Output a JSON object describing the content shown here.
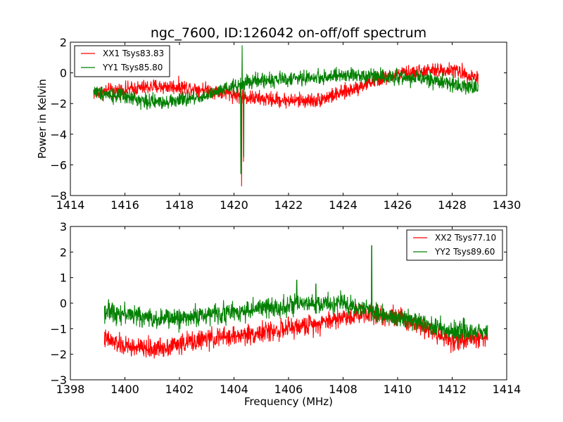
{
  "chart_data": [
    {
      "type": "line",
      "title": "ngc_7600, ID:126042 on-off/off spectrum",
      "xlabel": "",
      "ylabel": "Power in Kelvin",
      "xlim": [
        1414,
        1430
      ],
      "ylim": [
        -8,
        2
      ],
      "xticks": [
        1414,
        1416,
        1418,
        1420,
        1422,
        1424,
        1426,
        1428,
        1430
      ],
      "yticks": [
        -8,
        -6,
        -4,
        -2,
        0,
        2
      ],
      "xtick_labels": [
        "1414",
        "1416",
        "1418",
        "1420",
        "1422",
        "1424",
        "1426",
        "1428",
        "1430"
      ],
      "ytick_labels": [
        "−8",
        "−6",
        "−4",
        "−2",
        "0",
        "2"
      ],
      "grid": false,
      "legend_position": "top-left",
      "series": [
        {
          "name": "XX1 Tsys83.83",
          "color": "#ff0000",
          "x_range": [
            1414.85,
            1428.95
          ],
          "noise": 0.35,
          "baseline": [
            [
              1414.85,
              -1.3
            ],
            [
              1416,
              -1.1
            ],
            [
              1417,
              -0.9
            ],
            [
              1418,
              -0.9
            ],
            [
              1419,
              -1.1
            ],
            [
              1420,
              -1.4
            ],
            [
              1420.5,
              -1.6
            ],
            [
              1421,
              -1.7
            ],
            [
              1422,
              -1.8
            ],
            [
              1423,
              -1.8
            ],
            [
              1424,
              -1.3
            ],
            [
              1425,
              -0.6
            ],
            [
              1426,
              -0.1
            ],
            [
              1427,
              0.1
            ],
            [
              1428,
              0.2
            ],
            [
              1428.95,
              -0.3
            ]
          ],
          "features": [
            [
              1420.28,
              -7.4
            ],
            [
              1420.35,
              -5.8
            ]
          ]
        },
        {
          "name": "YY1 Tsys85.80",
          "color": "#008000",
          "x_range": [
            1414.85,
            1428.95
          ],
          "noise": 0.35,
          "baseline": [
            [
              1414.85,
              -1.2
            ],
            [
              1416,
              -1.6
            ],
            [
              1417,
              -1.9
            ],
            [
              1418,
              -1.8
            ],
            [
              1419,
              -1.5
            ],
            [
              1420,
              -0.9
            ],
            [
              1420.5,
              -0.6
            ],
            [
              1421,
              -0.5
            ],
            [
              1422,
              -0.4
            ],
            [
              1423,
              -0.3
            ],
            [
              1424,
              -0.2
            ],
            [
              1425,
              -0.15
            ],
            [
              1426,
              -0.3
            ],
            [
              1427,
              -0.4
            ],
            [
              1428,
              -0.7
            ],
            [
              1428.95,
              -1.0
            ]
          ],
          "features": [
            [
              1420.25,
              -6.6
            ],
            [
              1420.3,
              1.8
            ],
            [
              1420.36,
              -5.5
            ]
          ]
        }
      ]
    },
    {
      "type": "line",
      "title": "",
      "xlabel": "Frequency (MHz)",
      "ylabel": "",
      "xlim": [
        1398,
        1414
      ],
      "ylim": [
        -3,
        3
      ],
      "xticks": [
        1398,
        1400,
        1402,
        1404,
        1406,
        1408,
        1410,
        1412,
        1414
      ],
      "yticks": [
        -3,
        -2,
        -1,
        0,
        1,
        2,
        3
      ],
      "xtick_labels": [
        "1398",
        "1400",
        "1402",
        "1404",
        "1406",
        "1408",
        "1410",
        "1412",
        "1414"
      ],
      "ytick_labels": [
        "−3",
        "−2",
        "−1",
        "0",
        "1",
        "2",
        "3"
      ],
      "grid": false,
      "legend_position": "top-right",
      "series": [
        {
          "name": "XX2 Tsys77.10",
          "color": "#ff0000",
          "x_range": [
            1399.25,
            1413.3
          ],
          "noise": 0.28,
          "baseline": [
            [
              1399.25,
              -1.4
            ],
            [
              1400,
              -1.7
            ],
            [
              1401,
              -1.8
            ],
            [
              1402,
              -1.6
            ],
            [
              1403,
              -1.4
            ],
            [
              1404,
              -1.3
            ],
            [
              1405,
              -1.15
            ],
            [
              1406,
              -1.0
            ],
            [
              1407,
              -0.8
            ],
            [
              1408,
              -0.55
            ],
            [
              1409,
              -0.35
            ],
            [
              1410,
              -0.55
            ],
            [
              1411,
              -0.9
            ],
            [
              1412,
              -1.5
            ],
            [
              1413.3,
              -1.3
            ]
          ],
          "features": []
        },
        {
          "name": "YY2 Tsys89.60",
          "color": "#008000",
          "x_range": [
            1399.25,
            1413.3
          ],
          "noise": 0.28,
          "baseline": [
            [
              1399.25,
              -0.3
            ],
            [
              1400,
              -0.4
            ],
            [
              1401,
              -0.6
            ],
            [
              1402,
              -0.6
            ],
            [
              1403,
              -0.45
            ],
            [
              1404,
              -0.35
            ],
            [
              1405,
              -0.2
            ],
            [
              1406,
              -0.1
            ],
            [
              1407,
              -0.05
            ],
            [
              1408,
              0.0
            ],
            [
              1409,
              -0.3
            ],
            [
              1410,
              -0.55
            ],
            [
              1411,
              -0.8
            ],
            [
              1412,
              -1.1
            ],
            [
              1413.3,
              -1.1
            ]
          ],
          "features": [
            [
              1406.3,
              0.9
            ],
            [
              1407.0,
              0.75
            ],
            [
              1409.05,
              2.25
            ]
          ]
        }
      ]
    }
  ]
}
